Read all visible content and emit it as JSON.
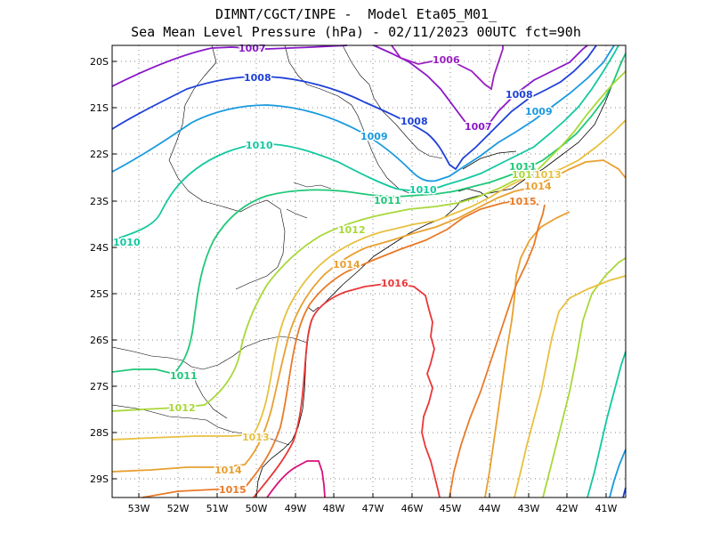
{
  "title_line1": "DIMNT/CGCT/INPE -  Model Eta05_M01_",
  "title_line2": "Sea Mean Level Pressure (hPa) - 02/11/2023 00UTC fct=90h",
  "map": {
    "lon_range": [
      -53.7,
      -40.5
    ],
    "lat_range": [
      -29.5,
      -19.7
    ],
    "lon_ticks": [
      "53W",
      "52W",
      "51W",
      "50W",
      "49W",
      "48W",
      "47W",
      "46W",
      "45W",
      "44W",
      "43W",
      "42W",
      "41W"
    ],
    "lat_ticks": [
      "20S",
      "21S",
      "22S",
      "23S",
      "24S",
      "25S",
      "26S",
      "27S",
      "28S",
      "29S"
    ],
    "grid": "dotted"
  },
  "colors": {
    "1005": "#8b1fb5",
    "1006": "#9a1fc0",
    "1007": "#8a18c8",
    "1008": "#1f40d8",
    "1009": "#1a9ae0",
    "1010": "#14c8a0",
    "1011": "#1fc878",
    "1012": "#a8d838",
    "1013": "#e8c040",
    "1014": "#e8a030",
    "1015": "#e87a28",
    "1016": "#e83838",
    "1017": "#d8107a"
  },
  "contour_labels": [
    {
      "text": "1007",
      "color": "1007"
    },
    {
      "text": "1006",
      "color": "1006"
    },
    {
      "text": "1008",
      "color": "1008"
    },
    {
      "text": "1008",
      "color": "1008"
    },
    {
      "text": "1008",
      "color": "1008"
    },
    {
      "text": "1007",
      "color": "1007"
    },
    {
      "text": "1009",
      "color": "1009"
    },
    {
      "text": "1009",
      "color": "1009"
    },
    {
      "text": "1010",
      "color": "1010"
    },
    {
      "text": "1010",
      "color": "1010"
    },
    {
      "text": "1010",
      "color": "1010"
    },
    {
      "text": "1011",
      "color": "1011"
    },
    {
      "text": "1011",
      "color": "1011"
    },
    {
      "text": "1012",
      "color": "1012"
    },
    {
      "text": "1012",
      "color": "1012"
    },
    {
      "text": "1013",
      "color": "1013"
    },
    {
      "text": "1014",
      "color": "1014"
    },
    {
      "text": "1014",
      "color": "1014"
    },
    {
      "text": "1015",
      "color": "1015"
    },
    {
      "text": "1015",
      "color": "1015"
    },
    {
      "text": "1016",
      "color": "1016"
    },
    {
      "text": "1011",
      "color": "1011"
    },
    {
      "text": "1012",
      "color": "1012"
    },
    {
      "text": "1013",
      "color": "1013"
    },
    {
      "text": "1014",
      "color": "1014"
    },
    {
      "text": "1015",
      "color": "1015"
    }
  ]
}
